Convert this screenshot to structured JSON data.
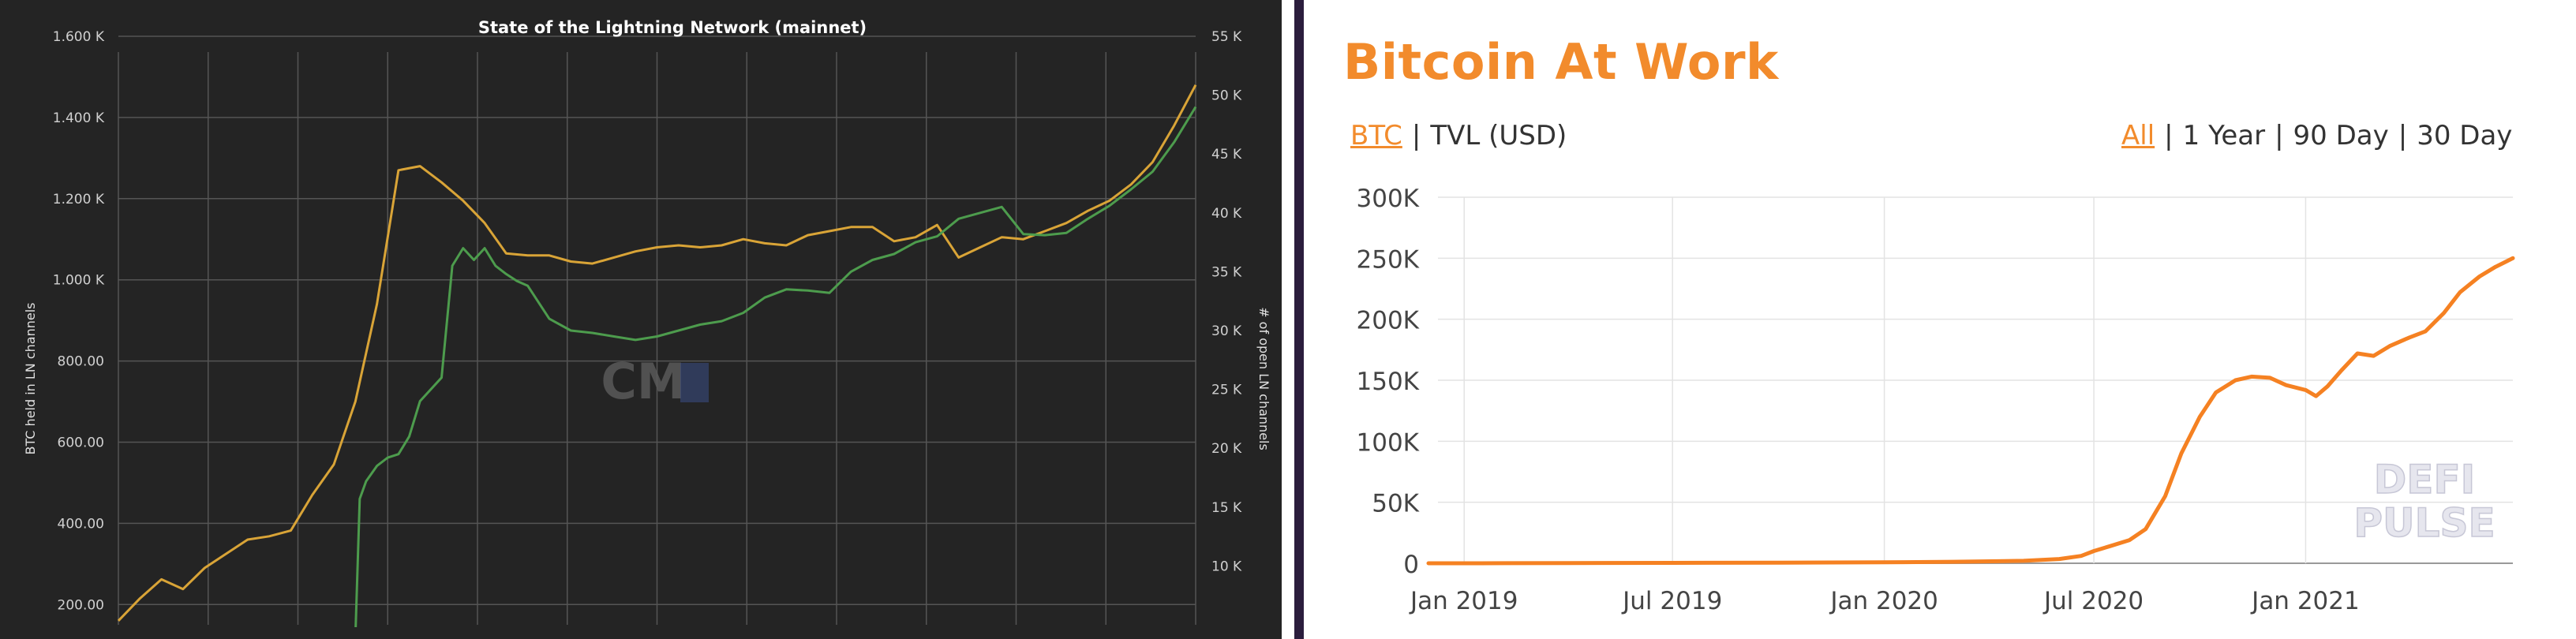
{
  "chart_data": [
    {
      "type": "line",
      "title": "State of the Lightning Network (mainnet)",
      "ylabel": "BTC held in LN channels",
      "y2label": "# of open LN channels",
      "y_ticks": [
        "200.00",
        "400.00",
        "600.00",
        "800.00",
        "1.000 K",
        "1.200 K",
        "1.400 K",
        "1.600 K"
      ],
      "y2_ticks": [
        "10 K",
        "15 K",
        "20 K",
        "25 K",
        "30 K",
        "35 K",
        "40 K",
        "45 K",
        "50 K",
        "55 K"
      ],
      "ylim": [
        150,
        1600
      ],
      "y2lim": [
        5000,
        55000
      ],
      "grid": true,
      "watermark": "CM",
      "series": [
        {
          "color": "#d9a437",
          "axis": "left",
          "x": [
            0,
            2,
            4,
            6,
            8,
            10,
            12,
            14,
            16,
            18,
            20,
            22,
            24,
            26,
            28,
            30,
            32,
            34,
            36,
            38,
            40,
            42,
            44,
            46,
            48,
            50,
            52,
            54,
            56,
            58,
            60,
            62,
            64,
            66,
            68,
            70,
            72,
            74,
            76,
            78,
            80,
            82,
            84,
            86,
            88,
            90,
            92,
            94,
            96,
            98,
            100
          ],
          "values": [
            160,
            215,
            262,
            238,
            290,
            325,
            360,
            368,
            382,
            470,
            545,
            700,
            940,
            1270,
            1280,
            1240,
            1195,
            1140,
            1065,
            1060,
            1060,
            1045,
            1040,
            1055,
            1070,
            1080,
            1085,
            1080,
            1085,
            1100,
            1090,
            1085,
            1110,
            1120,
            1130,
            1130,
            1095,
            1105,
            1135,
            1055,
            1080,
            1105,
            1100,
            1120,
            1140,
            1170,
            1195,
            1235,
            1290,
            1380,
            1480
          ]
        },
        {
          "color": "#4d9c4d",
          "axis": "right",
          "x": [
            22,
            22.4,
            23,
            24,
            25,
            26,
            27,
            28,
            30,
            31,
            32,
            33,
            34,
            35,
            36,
            37,
            38,
            40,
            42,
            44,
            46,
            48,
            50,
            52,
            54,
            56,
            58,
            60,
            62,
            64,
            66,
            68,
            70,
            72,
            74,
            76,
            78,
            80,
            82,
            84,
            86,
            88,
            90,
            92,
            94,
            96,
            98,
            100
          ],
          "values": [
            4000,
            15700,
            17200,
            18500,
            19200,
            19500,
            21000,
            24000,
            26000,
            35500,
            37000,
            36000,
            37000,
            35500,
            34800,
            34200,
            33800,
            31000,
            30000,
            29800,
            29500,
            29200,
            29500,
            30000,
            30500,
            30800,
            31500,
            32800,
            33500,
            33400,
            33200,
            35000,
            36000,
            36500,
            37500,
            38000,
            39500,
            40000,
            40500,
            38200,
            38100,
            38300,
            39500,
            40600,
            42000,
            43500,
            46000,
            49000
          ]
        }
      ]
    },
    {
      "type": "line",
      "title": "Bitcoin At Work",
      "x_ticks": [
        "Jan 2019",
        "Jul 2019",
        "Jan 2020",
        "Jul 2020",
        "Jan 2021"
      ],
      "y_ticks": [
        "0",
        "50K",
        "100K",
        "150K",
        "200K",
        "250K",
        "300K"
      ],
      "ylim": [
        0,
        300000
      ],
      "grid": true,
      "watermark": [
        "DEFI",
        "PULSE"
      ],
      "toggles": {
        "left": [
          "BTC",
          "TVL (USD)"
        ],
        "left_active": "BTC",
        "right": [
          "All",
          "1 Year",
          "90 Day",
          "30 Day"
        ],
        "right_active": "All"
      },
      "series": [
        {
          "color": "#f58122",
          "x": [
            "2018-12-01",
            "2019-01-15",
            "2019-04-01",
            "2019-07-01",
            "2019-10-01",
            "2020-01-01",
            "2020-03-01",
            "2020-05-01",
            "2020-06-01",
            "2020-06-20",
            "2020-07-01",
            "2020-07-15",
            "2020-08-01",
            "2020-08-15",
            "2020-09-01",
            "2020-09-15",
            "2020-10-01",
            "2020-10-15",
            "2020-11-01",
            "2020-11-15",
            "2020-12-01",
            "2020-12-15",
            "2021-01-01",
            "2021-01-10",
            "2021-01-20",
            "2021-02-01",
            "2021-02-15",
            "2021-03-01",
            "2021-03-15",
            "2021-04-01",
            "2021-04-15",
            "2021-05-01",
            "2021-05-15",
            "2021-06-01",
            "2021-06-15",
            "2021-06-30"
          ],
          "values": [
            0,
            0,
            200,
            300,
            500,
            800,
            1200,
            2000,
            3500,
            6000,
            10000,
            14000,
            19000,
            28000,
            55000,
            90000,
            120000,
            140000,
            150000,
            153000,
            152000,
            146000,
            142000,
            137000,
            145000,
            158000,
            172000,
            170000,
            178000,
            185000,
            190000,
            205000,
            222000,
            235000,
            243000,
            250000
          ]
        }
      ]
    }
  ]
}
